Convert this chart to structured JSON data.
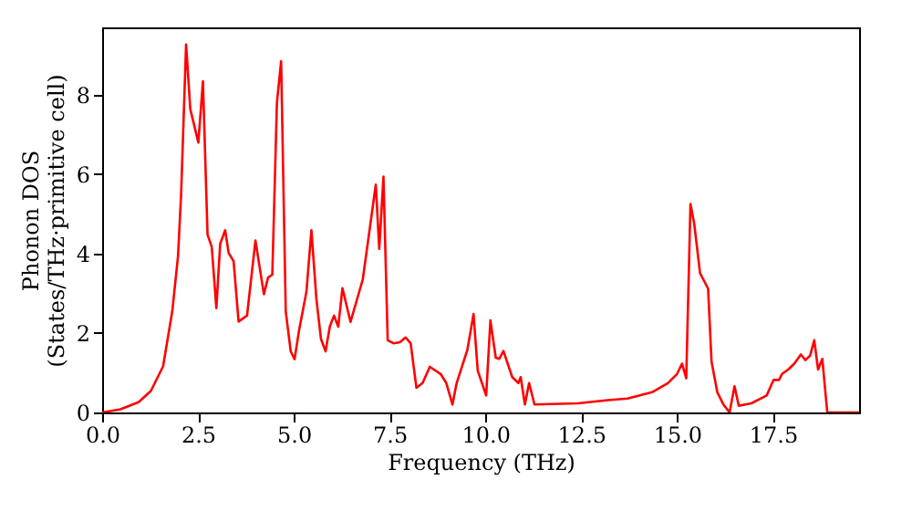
{
  "chart_data": {
    "type": "line",
    "xlabel": "Frequency (THz)",
    "ylabel": "Phonon DOS\n(States/THz·primitive cell)",
    "x": [
      0,
      0.48,
      0.95,
      1.27,
      1.59,
      1.83,
      1.98,
      2.06,
      2.19,
      2.3,
      2.51,
      2.63,
      2.75,
      2.86,
      2.98,
      3.08,
      3.21,
      3.3,
      3.43,
      3.56,
      3.78,
      4.0,
      4.22,
      4.33,
      4.44,
      4.56,
      4.67,
      4.79,
      4.92,
      5.02,
      5.14,
      5.33,
      5.46,
      5.59,
      5.71,
      5.83,
      5.94,
      6.05,
      6.16,
      6.27,
      6.48,
      6.8,
      7.14,
      7.23,
      7.34,
      7.45,
      7.61,
      7.77,
      7.92,
      8.05,
      8.2,
      8.36,
      8.55,
      8.83,
      8.98,
      9.14,
      9.25,
      9.53,
      9.69,
      9.8,
      10.02,
      10.13,
      10.27,
      10.36,
      10.47,
      10.7,
      10.86,
      10.92,
      11.03,
      11.14,
      11.28,
      12.42,
      13.2,
      13.71,
      14.35,
      14.76,
      15.0,
      15.13,
      15.24,
      15.35,
      15.45,
      15.6,
      15.81,
      15.9,
      16.05,
      16.21,
      16.37,
      16.5,
      16.61,
      16.94,
      17.34,
      17.52,
      17.66,
      17.74,
      17.9,
      18.06,
      18.23,
      18.35,
      18.47,
      18.58,
      18.68,
      18.79,
      18.92,
      19.75
    ],
    "series": [
      {
        "color": "#ff0000",
        "values": [
          0,
          0.08,
          0.26,
          0.54,
          1.16,
          2.55,
          3.94,
          5.48,
          9.27,
          7.64,
          6.8,
          8.34,
          4.48,
          4.17,
          2.63,
          4.25,
          4.59,
          4.02,
          3.81,
          2.29,
          2.44,
          4.33,
          2.98,
          3.4,
          3.47,
          7.8,
          8.85,
          2.55,
          1.54,
          1.34,
          2.08,
          3.04,
          4.59,
          2.86,
          1.85,
          1.54,
          2.16,
          2.44,
          2.16,
          3.13,
          2.28,
          3.35,
          5.74,
          4.12,
          5.94,
          1.82,
          1.74,
          1.77,
          1.89,
          1.74,
          0.62,
          0.74,
          1.15,
          0.97,
          0.74,
          0.2,
          0.74,
          1.58,
          2.48,
          1.05,
          0.43,
          2.32,
          1.38,
          1.35,
          1.55,
          0.89,
          0.74,
          0.89,
          0.2,
          0.74,
          0.2,
          0.23,
          0.31,
          0.35,
          0.51,
          0.74,
          0.97,
          1.23,
          0.86,
          5.25,
          4.74,
          3.51,
          3.12,
          1.28,
          0.51,
          0.2,
          0,
          0.66,
          0.17,
          0.23,
          0.43,
          0.82,
          0.82,
          0.97,
          1.08,
          1.23,
          1.46,
          1.32,
          1.43,
          1.82,
          1.08,
          1.35,
          0,
          0
        ]
      }
    ],
    "xlim": [
      0,
      19.75
    ],
    "ylim": [
      0,
      9.7
    ],
    "xticks": [
      {
        "value": 0,
        "label": "0.0"
      },
      2.5,
      {
        "value": 5,
        "label": "5.0"
      },
      7.5,
      {
        "value": 10,
        "label": "10.0"
      },
      12.5,
      {
        "value": 15,
        "label": "15.0"
      },
      17.5
    ],
    "yticks": [
      0,
      2,
      4,
      6,
      8
    ],
    "grid": false,
    "marker": "none",
    "line_style": "solid"
  }
}
